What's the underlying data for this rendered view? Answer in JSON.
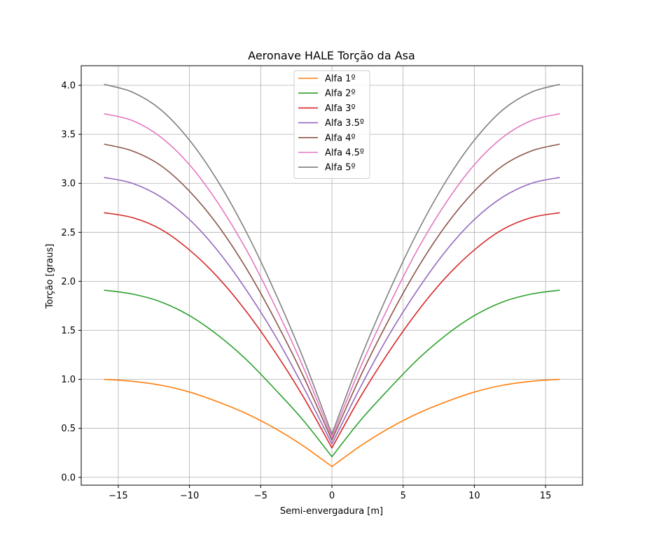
{
  "chart_data": {
    "type": "line",
    "title": "Aeronave HALE Torção da Asa",
    "xlabel": "Semi-envergadura [m]",
    "ylabel": "Torção [graus]",
    "xlim": [
      -17.6,
      17.6
    ],
    "ylim": [
      -0.08,
      4.2
    ],
    "xticks": [
      -15,
      -10,
      -5,
      0,
      5,
      10,
      15
    ],
    "xtick_labels": [
      "−15",
      "−10",
      "−5",
      "0",
      "5",
      "10",
      "15"
    ],
    "yticks": [
      0.0,
      0.5,
      1.0,
      1.5,
      2.0,
      2.5,
      3.0,
      3.5,
      4.0
    ],
    "ytick_labels": [
      "0.0",
      "0.5",
      "1.0",
      "1.5",
      "2.0",
      "2.5",
      "3.0",
      "3.5",
      "4.0"
    ],
    "grid": true,
    "legend_position": "top-center",
    "x": [
      -16,
      -14,
      -12,
      -10,
      -8,
      -6,
      -4,
      -2,
      0,
      2,
      4,
      6,
      8,
      10,
      12,
      14,
      16
    ],
    "series": [
      {
        "name": "Alfa 1º",
        "color": "#ff7f0e",
        "values": [
          1.0,
          0.98,
          0.94,
          0.87,
          0.77,
          0.65,
          0.5,
          0.32,
          0.11,
          0.32,
          0.5,
          0.65,
          0.77,
          0.87,
          0.94,
          0.98,
          1.0
        ]
      },
      {
        "name": "Alfa 2º",
        "color": "#2ca02c",
        "values": [
          1.91,
          1.87,
          1.79,
          1.65,
          1.45,
          1.2,
          0.9,
          0.58,
          0.21,
          0.58,
          0.9,
          1.2,
          1.45,
          1.65,
          1.79,
          1.87,
          1.91
        ]
      },
      {
        "name": "Alfa 3º",
        "color": "#d62728",
        "values": [
          2.7,
          2.65,
          2.53,
          2.32,
          2.04,
          1.69,
          1.28,
          0.82,
          0.3,
          0.82,
          1.28,
          1.69,
          2.04,
          2.32,
          2.53,
          2.65,
          2.7
        ]
      },
      {
        "name": "Alfa 3.5º",
        "color": "#9467bd",
        "values": [
          3.06,
          3.0,
          2.86,
          2.63,
          2.31,
          1.91,
          1.45,
          0.92,
          0.34,
          0.92,
          1.45,
          1.91,
          2.31,
          2.63,
          2.86,
          3.0,
          3.06
        ]
      },
      {
        "name": "Alfa 4º",
        "color": "#8c564b",
        "values": [
          3.4,
          3.33,
          3.18,
          2.92,
          2.57,
          2.13,
          1.61,
          1.03,
          0.38,
          1.03,
          1.61,
          2.13,
          2.57,
          2.92,
          3.18,
          3.33,
          3.4
        ]
      },
      {
        "name": "Alfa 4.5º",
        "color": "#e377c2",
        "values": [
          3.71,
          3.64,
          3.47,
          3.19,
          2.8,
          2.32,
          1.75,
          1.12,
          0.41,
          1.12,
          1.75,
          2.32,
          2.8,
          3.19,
          3.47,
          3.64,
          3.71
        ]
      },
      {
        "name": "Alfa 5º",
        "color": "#7f7f7f",
        "values": [
          4.01,
          3.93,
          3.75,
          3.44,
          3.02,
          2.5,
          1.89,
          1.21,
          0.44,
          1.21,
          1.89,
          2.5,
          3.02,
          3.44,
          3.75,
          3.93,
          4.01
        ]
      }
    ]
  }
}
